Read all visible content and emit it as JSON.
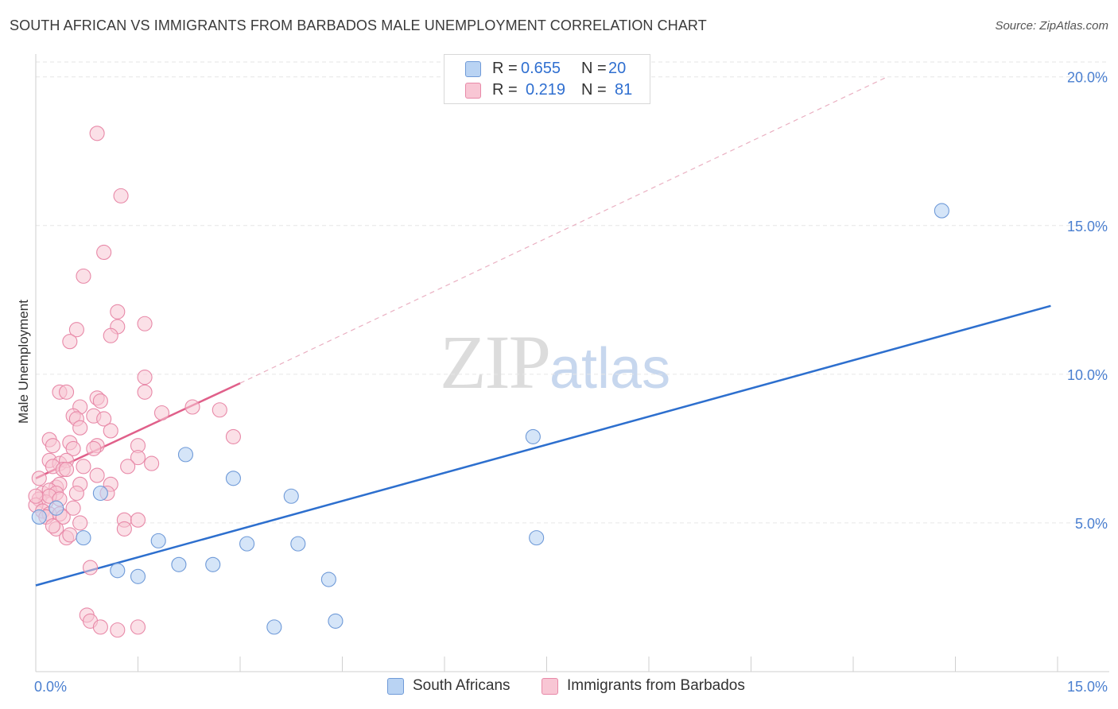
{
  "header": {
    "title": "SOUTH AFRICAN VS IMMIGRANTS FROM BARBADOS MALE UNEMPLOYMENT CORRELATION CHART",
    "source": "Source: ZipAtlas.com"
  },
  "watermark": {
    "zip": "ZIP",
    "atlas": "atlas"
  },
  "legend": {
    "rows": [
      {
        "r_label": "R =",
        "r_value": "0.655",
        "n_label": "N =",
        "n_value": "20"
      },
      {
        "r_label": "R =",
        "r_value": "0.219",
        "n_label": "N =",
        "n_value": "81"
      }
    ]
  },
  "colors": {
    "blue_fill": "#b9d3f3",
    "blue_stroke": "#6f9ad8",
    "blue_line": "#2d6fce",
    "pink_fill": "#f8c6d4",
    "pink_stroke": "#e889a8",
    "pink_line": "#e0608a",
    "grid": "#e6e6e6",
    "tick_text": "#4a7fd0"
  },
  "chart_data": {
    "type": "scatter",
    "title": "SOUTH AFRICAN VS IMMIGRANTS FROM BARBADOS MALE UNEMPLOYMENT CORRELATION CHART",
    "xlabel": "",
    "ylabel": "Male Unemployment",
    "xlim": [
      0,
      15
    ],
    "ylim": [
      0,
      20.5
    ],
    "x_tick_labels": [
      "0.0%",
      "15.0%"
    ],
    "y_ticks": [
      5,
      10,
      15,
      20
    ],
    "y_tick_labels": [
      "5.0%",
      "10.0%",
      "15.0%",
      "20.0%"
    ],
    "grid": true,
    "legend_position": "top-center",
    "series": [
      {
        "name": "South Africans",
        "R": 0.655,
        "N": 20,
        "points": [
          [
            0.05,
            5.2
          ],
          [
            0.7,
            4.5
          ],
          [
            0.95,
            6.0
          ],
          [
            1.2,
            3.4
          ],
          [
            1.5,
            3.2
          ],
          [
            1.8,
            4.4
          ],
          [
            2.1,
            3.6
          ],
          [
            2.2,
            7.3
          ],
          [
            2.6,
            3.6
          ],
          [
            2.9,
            6.5
          ],
          [
            3.1,
            4.3
          ],
          [
            3.5,
            1.5
          ],
          [
            3.75,
            5.9
          ],
          [
            3.85,
            4.3
          ],
          [
            4.3,
            3.1
          ],
          [
            4.4,
            1.7
          ],
          [
            7.3,
            7.9
          ],
          [
            7.35,
            4.5
          ],
          [
            13.3,
            15.5
          ],
          [
            0.3,
            5.5
          ]
        ],
        "trend": {
          "x": [
            0,
            14.9
          ],
          "y": [
            2.9,
            12.3
          ],
          "style": "solid"
        }
      },
      {
        "name": "Immigrants from Barbados",
        "R": 0.219,
        "N": 81,
        "points": [
          [
            0.9,
            18.1
          ],
          [
            1.25,
            16.0
          ],
          [
            1.0,
            14.1
          ],
          [
            0.7,
            13.3
          ],
          [
            1.2,
            12.1
          ],
          [
            1.2,
            11.6
          ],
          [
            1.6,
            11.7
          ],
          [
            0.6,
            11.5
          ],
          [
            1.1,
            11.3
          ],
          [
            0.5,
            11.1
          ],
          [
            1.6,
            9.9
          ],
          [
            0.35,
            9.4
          ],
          [
            0.45,
            9.4
          ],
          [
            1.6,
            9.4
          ],
          [
            0.9,
            9.2
          ],
          [
            0.95,
            9.1
          ],
          [
            0.65,
            8.9
          ],
          [
            0.55,
            8.6
          ],
          [
            1.85,
            8.7
          ],
          [
            2.3,
            8.9
          ],
          [
            2.7,
            8.8
          ],
          [
            0.6,
            8.5
          ],
          [
            0.85,
            8.6
          ],
          [
            1.0,
            8.5
          ],
          [
            0.65,
            8.2
          ],
          [
            1.1,
            8.1
          ],
          [
            0.2,
            7.8
          ],
          [
            0.5,
            7.7
          ],
          [
            0.25,
            7.6
          ],
          [
            0.9,
            7.6
          ],
          [
            0.55,
            7.5
          ],
          [
            0.85,
            7.5
          ],
          [
            1.5,
            7.6
          ],
          [
            2.9,
            7.9
          ],
          [
            0.2,
            7.1
          ],
          [
            0.35,
            7.0
          ],
          [
            0.45,
            7.1
          ],
          [
            1.5,
            7.2
          ],
          [
            0.25,
            6.9
          ],
          [
            0.4,
            6.8
          ],
          [
            0.45,
            6.8
          ],
          [
            1.35,
            6.9
          ],
          [
            1.7,
            7.0
          ],
          [
            0.05,
            6.5
          ],
          [
            0.3,
            6.2
          ],
          [
            0.35,
            6.3
          ],
          [
            0.65,
            6.3
          ],
          [
            0.9,
            6.6
          ],
          [
            1.1,
            6.3
          ],
          [
            0.1,
            6.0
          ],
          [
            0.2,
            6.1
          ],
          [
            0.3,
            6.0
          ],
          [
            0.6,
            6.0
          ],
          [
            1.05,
            6.0
          ],
          [
            0.05,
            5.8
          ],
          [
            0.15,
            5.7
          ],
          [
            0.2,
            5.9
          ],
          [
            0.35,
            5.8
          ],
          [
            0.0,
            5.6
          ],
          [
            0.1,
            5.4
          ],
          [
            0.2,
            5.3
          ],
          [
            0.35,
            5.3
          ],
          [
            0.15,
            5.2
          ],
          [
            0.4,
            5.2
          ],
          [
            0.3,
            4.8
          ],
          [
            0.45,
            4.5
          ],
          [
            0.5,
            4.6
          ],
          [
            0.65,
            5.0
          ],
          [
            1.3,
            5.1
          ],
          [
            1.5,
            5.1
          ],
          [
            1.3,
            4.8
          ],
          [
            0.8,
            3.5
          ],
          [
            0.75,
            1.9
          ],
          [
            0.8,
            1.7
          ],
          [
            0.95,
            1.5
          ],
          [
            1.2,
            1.4
          ],
          [
            1.5,
            1.5
          ],
          [
            0.0,
            5.9
          ],
          [
            0.55,
            5.5
          ],
          [
            0.25,
            4.9
          ],
          [
            0.7,
            6.9
          ]
        ],
        "trend": {
          "x": [
            0,
            3.0
          ],
          "y": [
            6.5,
            9.7
          ],
          "style": "solid"
        },
        "trend_extension": {
          "x": [
            3.0,
            12.5
          ],
          "y": [
            9.7,
            20.0
          ],
          "style": "dashed"
        }
      }
    ]
  },
  "bottom_legend": {
    "items": [
      {
        "label": "South Africans"
      },
      {
        "label": "Immigrants from Barbados"
      }
    ]
  }
}
